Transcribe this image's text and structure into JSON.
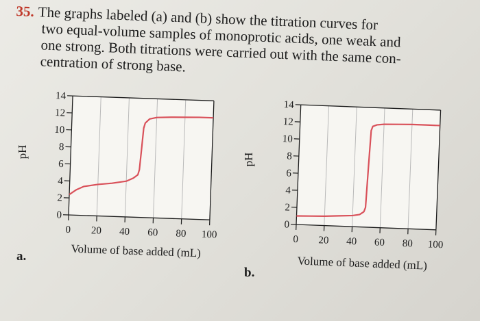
{
  "problem": {
    "number": "35.",
    "lines": [
      "The graphs labeled (a) and (b) show the titration curves for",
      "two equal-volume samples of monoprotic acids, one weak and",
      "one strong. Both titrations were carried out with the same con-",
      "centration of strong base."
    ]
  },
  "colors": {
    "curve": "#d9515a",
    "grid": "#b9b9b9",
    "axis": "#1d1d1d"
  },
  "chart_data": [
    {
      "type": "line",
      "panel_label": "a.",
      "xlabel": "Volume of base added (mL)",
      "ylabel": "pH",
      "xlim": [
        0,
        100
      ],
      "ylim": [
        0,
        14
      ],
      "x_ticks": [
        "0",
        "20",
        "40",
        "60",
        "80",
        "100"
      ],
      "y_ticks": [
        "0",
        "2",
        "4",
        "6",
        "8",
        "10",
        "12",
        "14"
      ],
      "grid": true,
      "series": [
        {
          "x": [
            0,
            5,
            10,
            20,
            30,
            40,
            45,
            48,
            49,
            50,
            51,
            52,
            55,
            60,
            70,
            80,
            90,
            100
          ],
          "y": [
            2.4,
            3.0,
            3.4,
            3.7,
            3.9,
            4.2,
            4.6,
            5.0,
            5.6,
            8.0,
            10.5,
            11.1,
            11.6,
            11.8,
            11.9,
            11.95,
            12.0,
            12.0
          ]
        }
      ]
    },
    {
      "type": "line",
      "panel_label": "b.",
      "xlabel": "Volume of base added (mL)",
      "ylabel": "pH",
      "xlim": [
        0,
        100
      ],
      "ylim": [
        0,
        14
      ],
      "x_ticks": [
        "0",
        "20",
        "40",
        "60",
        "80",
        "100"
      ],
      "y_ticks": [
        "0",
        "2",
        "4",
        "6",
        "8",
        "10",
        "12",
        "14"
      ],
      "grid": true,
      "series": [
        {
          "x": [
            0,
            10,
            20,
            30,
            40,
            45,
            48,
            49,
            50,
            51,
            52,
            55,
            60,
            70,
            80,
            90,
            100
          ],
          "y": [
            1.0,
            1.05,
            1.1,
            1.2,
            1.3,
            1.45,
            1.8,
            2.3,
            7.0,
            11.3,
            11.8,
            12.0,
            12.1,
            12.15,
            12.2,
            12.2,
            12.2
          ]
        }
      ]
    }
  ]
}
